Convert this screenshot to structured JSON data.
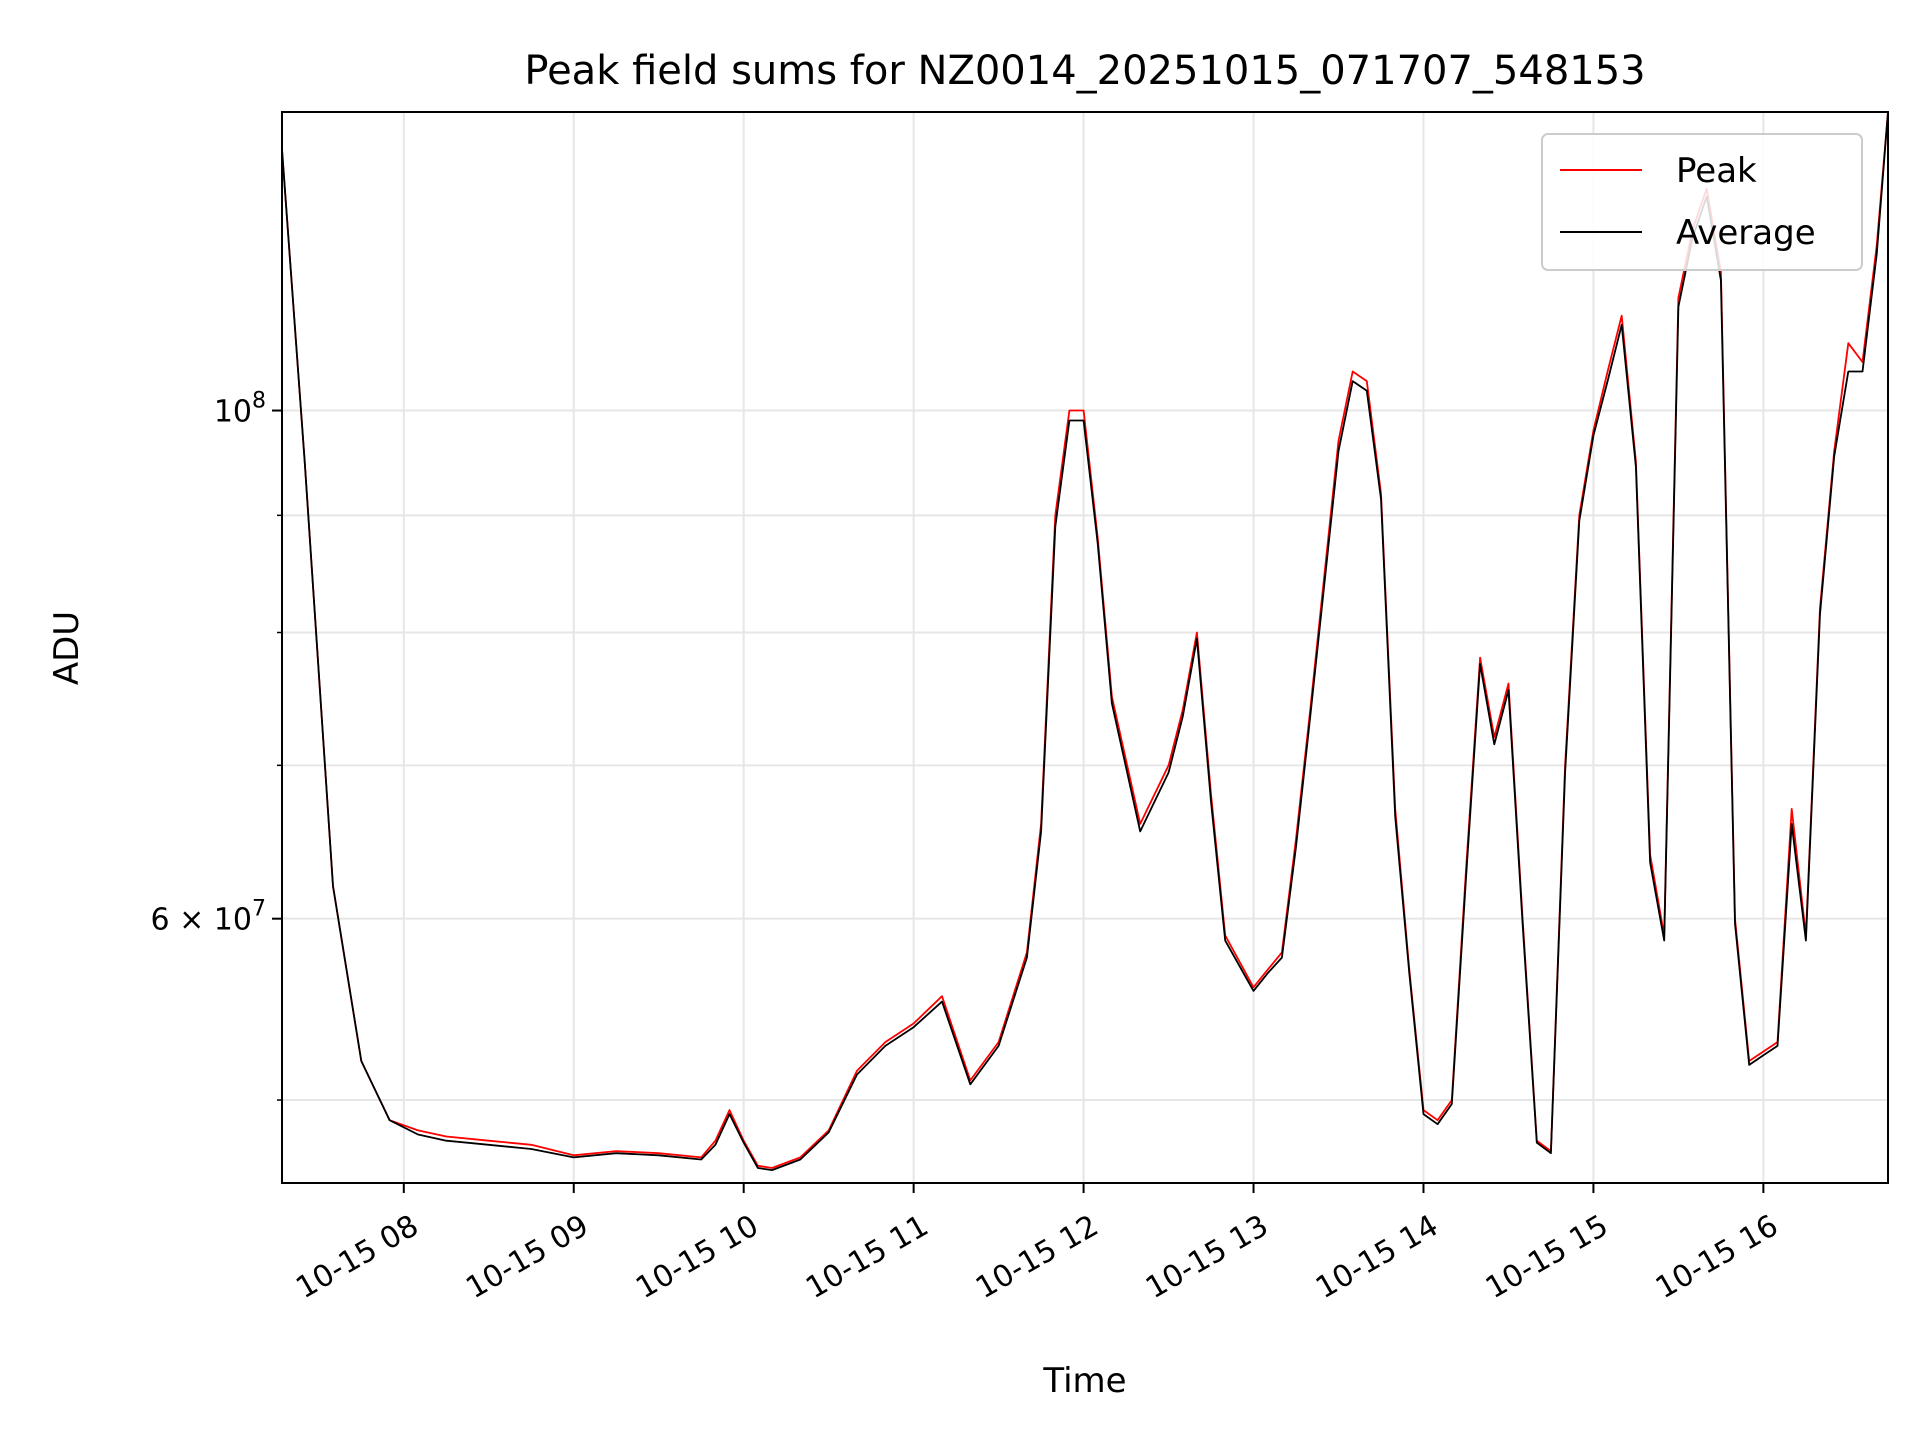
{
  "chart_data": {
    "type": "line",
    "title": "Peak field sums for NZ0014_20251015_071707_548153",
    "xlabel": "Time",
    "ylabel": "ADU",
    "y_scale": "log",
    "xlim": [
      "2025-10-15 07:17",
      "2025-10-15 16:44"
    ],
    "ylim": [
      46000000,
      135000000
    ],
    "grid": true,
    "legend_position": "top-right",
    "x_ticks": [
      "10-15 08",
      "10-15 09",
      "10-15 10",
      "10-15 11",
      "10-15 12",
      "10-15 13",
      "10-15 14",
      "10-15 15",
      "10-15 16"
    ],
    "y_major_ticks": [
      {
        "value": 100000000,
        "label_base": "10",
        "label_exp": "8"
      },
      {
        "value": 60000000,
        "label_mantissa": "6 × 10",
        "label_exp": "7"
      }
    ],
    "y_minor_gridlines": [
      50000000,
      70000000,
      80000000,
      90000000
    ],
    "x": [
      "07:17",
      "07:25",
      "07:35",
      "07:45",
      "07:55",
      "08:05",
      "08:15",
      "08:30",
      "08:45",
      "09:00",
      "09:15",
      "09:30",
      "09:45",
      "09:50",
      "09:55",
      "10:00",
      "10:05",
      "10:10",
      "10:20",
      "10:30",
      "10:40",
      "10:50",
      "11:00",
      "11:10",
      "11:20",
      "11:30",
      "11:40",
      "11:45",
      "11:50",
      "11:55",
      "12:00",
      "12:05",
      "12:10",
      "12:20",
      "12:30",
      "12:35",
      "12:40",
      "12:45",
      "12:50",
      "13:00",
      "13:05",
      "13:10",
      "13:15",
      "13:20",
      "13:30",
      "13:35",
      "13:40",
      "13:45",
      "13:50",
      "13:55",
      "14:00",
      "14:05",
      "14:10",
      "14:15",
      "14:20",
      "14:25",
      "14:30",
      "14:35",
      "14:40",
      "14:45",
      "14:50",
      "14:55",
      "15:00",
      "15:05",
      "15:10",
      "15:15",
      "15:20",
      "15:25",
      "15:30",
      "15:35",
      "15:40",
      "15:45",
      "15:50",
      "15:55",
      "16:00",
      "16:05",
      "16:10",
      "16:15",
      "16:20",
      "16:25",
      "16:30",
      "16:35",
      "16:40",
      "16:44"
    ],
    "series": [
      {
        "name": "Peak",
        "color": "#ff0000",
        "values": [
          130000000,
          95000000,
          62000000,
          52000000,
          49000000,
          48500000,
          48200000,
          48000000,
          47800000,
          47300000,
          47500000,
          47400000,
          47200000,
          48000000,
          49500000,
          48000000,
          46800000,
          46700000,
          47200000,
          48500000,
          51500000,
          53000000,
          54000000,
          55500000,
          51000000,
          53000000,
          58000000,
          66000000,
          90000000,
          100000000,
          100000000,
          88000000,
          75000000,
          66000000,
          70000000,
          74000000,
          80000000,
          68000000,
          59000000,
          56000000,
          57000000,
          58000000,
          65000000,
          74000000,
          97000000,
          104000000,
          103000000,
          92000000,
          67000000,
          57000000,
          49500000,
          49000000,
          50000000,
          63000000,
          78000000,
          72000000,
          76000000,
          60000000,
          48000000,
          47500000,
          70000000,
          90000000,
          98000000,
          104000000,
          110000000,
          95000000,
          64000000,
          59000000,
          112000000,
          120000000,
          125000000,
          115000000,
          60000000,
          52000000,
          52500000,
          53000000,
          67000000,
          59000000,
          82000000,
          96000000,
          107000000,
          105000000,
          118000000,
          135000000
        ]
      },
      {
        "name": "Average",
        "color": "#000000",
        "values": [
          130000000,
          95000000,
          62000000,
          52000000,
          49000000,
          48300000,
          48000000,
          47800000,
          47600000,
          47200000,
          47400000,
          47300000,
          47100000,
          47800000,
          49300000,
          47900000,
          46700000,
          46600000,
          47100000,
          48400000,
          51300000,
          52800000,
          53800000,
          55200000,
          50800000,
          52800000,
          57700000,
          65500000,
          89000000,
          99000000,
          99000000,
          87500000,
          74500000,
          65500000,
          69500000,
          73500000,
          79500000,
          67500000,
          58700000,
          55800000,
          56800000,
          57700000,
          64500000,
          73500000,
          96000000,
          103000000,
          102000000,
          91500000,
          66500000,
          56800000,
          49300000,
          48800000,
          49800000,
          62500000,
          77500000,
          71500000,
          75500000,
          59700000,
          47900000,
          47400000,
          69500000,
          89500000,
          97500000,
          103000000,
          109000000,
          94500000,
          63500000,
          58700000,
          111000000,
          119000000,
          124000000,
          114000000,
          59700000,
          51800000,
          52300000,
          52800000,
          66000000,
          58700000,
          81500000,
          95500000,
          104000000,
          104000000,
          117000000,
          135000000
        ]
      }
    ]
  }
}
